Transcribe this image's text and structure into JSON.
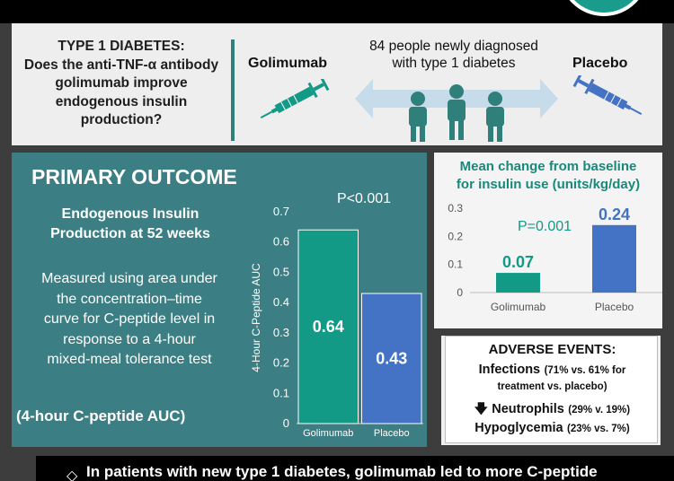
{
  "question": {
    "lines": [
      "TYPE 1 DIABETES:",
      "Does the anti-TNF-α antibody",
      "golimumab improve",
      "endogenous insulin",
      "production?"
    ]
  },
  "cohort": {
    "lines": [
      "84 people newly diagnosed",
      "with type 1 diabetes"
    ],
    "arm_left": "Golimumab",
    "arm_right": "Placebo"
  },
  "primary": {
    "title": "PRIMARY OUTCOME",
    "subtitle_lines": [
      "Endogenous Insulin",
      "Production at 52 weeks"
    ],
    "desc_lines": [
      "Measured using area under",
      "the concentration–time",
      "curve for C-peptide level in",
      "response to a 4-hour",
      "mixed-meal tolerance test"
    ],
    "footer": "(4-hour C-peptide AUC)"
  },
  "mean_change": {
    "title_lines": [
      "Mean change from baseline",
      "for insulin use (units/kg/day)"
    ]
  },
  "adverse": {
    "title": "ADVERSE EVENTS:",
    "infections_label": "Infections",
    "infections_detail_1": "(71% vs. 61% for",
    "infections_detail_2": "treatment vs. placebo)",
    "neutrophils_label": "Neutrophils",
    "neutrophils_detail": "(29% v. 19%)",
    "hypo_label": "Hypoglycemia",
    "hypo_detail": "(23% vs. 7%)",
    "down_arrow": "🡇"
  },
  "conclusion": {
    "text": "In patients with new type 1 diabetes, golimumab led to more C-peptide"
  },
  "colors": {
    "teal": "#139a87",
    "blue": "#4472c4",
    "panel_teal": "#3b7e83",
    "heading_teal": "#18897b"
  },
  "chart_data": [
    {
      "type": "bar",
      "categories": [
        "Golimumab",
        "Placebo"
      ],
      "values": [
        0.64,
        0.43
      ],
      "value_labels": [
        "0.64",
        "0.43"
      ],
      "ylabel": "4-Hour C-Peptide AUC",
      "ylim": [
        0,
        0.7
      ],
      "yticks": [
        0,
        0.1,
        0.2,
        0.3,
        0.4,
        0.5,
        0.6,
        0.7
      ],
      "ytick_labels": [
        "0",
        "0.1",
        "0.2",
        "0.3",
        "0.4",
        "0.5",
        "0.6",
        "0.7"
      ],
      "annotation": "P<0.001",
      "colors": [
        "#139a87",
        "#4472c4"
      ],
      "grid": false
    },
    {
      "type": "bar",
      "categories": [
        "Golimumab",
        "Placebo"
      ],
      "values": [
        0.07,
        0.24
      ],
      "value_labels": [
        "0.07",
        "0.24"
      ],
      "ylim": [
        0,
        0.3
      ],
      "yticks": [
        0,
        0.1,
        0.2,
        0.3
      ],
      "ytick_labels": [
        "0",
        "0.1",
        "0.2",
        "0.3"
      ],
      "annotation": "P=0.001",
      "colors": [
        "#139a87",
        "#4472c4"
      ],
      "grid": false
    }
  ]
}
